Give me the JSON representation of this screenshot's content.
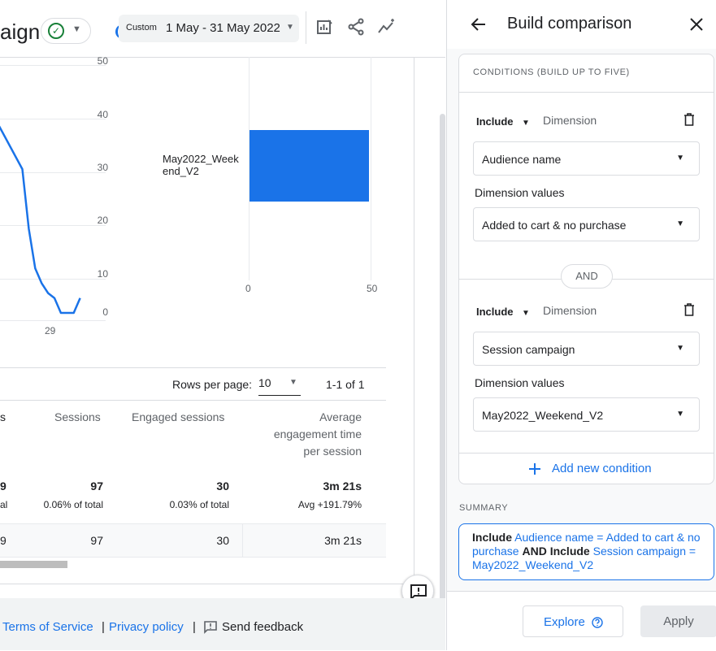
{
  "header": {
    "title_fragment": "aign",
    "date_range": {
      "label": "Custom",
      "value": "1 May - 31 May 2022"
    }
  },
  "icons": {
    "status": "check-circle-icon",
    "customize": "customize-report-icon",
    "share": "share-icon",
    "insights": "insights-icon",
    "back": "arrow-left-icon",
    "close": "close-icon",
    "delete": "trash-icon",
    "add": "plus-icon",
    "help": "help-circle-icon",
    "feedback": "feedback-icon"
  },
  "chart_data": [
    {
      "type": "line",
      "x_tick_labels": [
        "29"
      ],
      "y_tick_labels": [
        "0",
        "10",
        "20",
        "30",
        "40",
        "50"
      ],
      "ylim": [
        0,
        50
      ],
      "x": [
        17,
        22,
        23,
        24,
        25,
        26,
        27,
        28,
        29,
        30,
        31
      ],
      "y": [
        41,
        29,
        17,
        9,
        6,
        4,
        3,
        0,
        0,
        0,
        3
      ],
      "color": "#1a73e8"
    },
    {
      "type": "bar",
      "orientation": "horizontal",
      "categories": [
        "May2022_Weekend_V2"
      ],
      "values": [
        49
      ],
      "x_tick_labels": [
        "0",
        "50"
      ],
      "xlim": [
        0,
        50
      ],
      "color": "#1a73e8"
    }
  ],
  "pagination": {
    "label": "Rows per page:",
    "value": "10",
    "range": "1-1 of 1"
  },
  "table": {
    "columns": [
      "s",
      "Sessions",
      "Engaged sessions"
    ],
    "avg_col_lines": [
      "Average",
      "engagement time",
      "per session"
    ],
    "totals": [
      {
        "value": "9",
        "sub": "al"
      },
      {
        "value": "97",
        "sub": "0.06% of total"
      },
      {
        "value": "30",
        "sub": "0.03% of total"
      },
      {
        "value": "3m 21s",
        "sub": "Avg +191.79%"
      }
    ],
    "row": [
      "9",
      "97",
      "30",
      "3m 21s"
    ]
  },
  "footer": {
    "terms": "Terms of Service",
    "sep1": "|",
    "privacy": "Privacy policy",
    "sep2": "|",
    "feedback": "Send feedback"
  },
  "panel": {
    "title": "Build comparison",
    "section_label": "CONDITIONS (BUILD UP TO FIVE)",
    "conditions": [
      {
        "include": "Include",
        "dimension_label": "Dimension",
        "dimension": "Audience name",
        "values_label": "Dimension values",
        "value": "Added to cart & no purchase"
      },
      {
        "include": "Include",
        "dimension_label": "Dimension",
        "dimension": "Session campaign",
        "values_label": "Dimension values",
        "value": "May2022_Weekend_V2"
      }
    ],
    "and_label": "AND",
    "add_condition": "Add new condition",
    "summary_label": "SUMMARY",
    "summary": {
      "p1": "Include",
      "p2": " Audience name = Added to cart & no purchase ",
      "p3": "AND Include",
      "p4": " Session campaign = May2022_Weekend_V2"
    },
    "explore_button": "Explore",
    "apply_button": "Apply"
  }
}
